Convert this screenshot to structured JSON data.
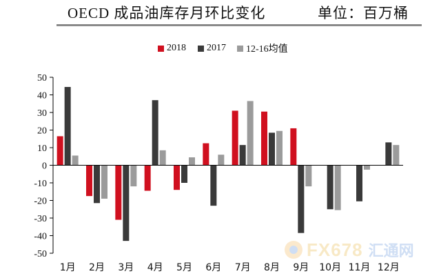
{
  "header": {
    "title": "OECD 成品油库存月环比变化",
    "unit": "单位：百万桶"
  },
  "watermark": {
    "brand": "FX678",
    "cn": "汇通网"
  },
  "colors": {
    "s2018": "#d0101f",
    "s2017": "#3a3a3a",
    "avg": "#9b9b9b",
    "rule": "#8a8a8a",
    "axis": "#000000"
  },
  "chart_data": {
    "type": "bar",
    "title": "OECD 成品油库存月环比变化",
    "unit": "单位：百万桶",
    "categories": [
      "1月",
      "2月",
      "3月",
      "4月",
      "5月",
      "6月",
      "7月",
      "8月",
      "9月",
      "10月",
      "11月",
      "12月"
    ],
    "series": [
      {
        "name": "2018",
        "color": "#d0101f",
        "values": [
          16.5,
          -17.5,
          -31,
          -14.5,
          -14,
          12.5,
          31,
          30.5,
          21,
          null,
          null,
          null
        ]
      },
      {
        "name": "2017",
        "color": "#3a3a3a",
        "values": [
          44.5,
          -21.5,
          -43,
          37,
          -10,
          -23,
          11.5,
          18.5,
          -38.5,
          -25,
          -20.5,
          13
        ]
      },
      {
        "name": "12-16均值",
        "color": "#9b9b9b",
        "values": [
          5.5,
          -19,
          -12,
          8.5,
          4.5,
          6,
          36.5,
          19.5,
          -12,
          -25.5,
          -2.5,
          11.5
        ]
      }
    ],
    "ylim": [
      -50,
      50
    ],
    "yticks": [
      50,
      40,
      30,
      20,
      10,
      0,
      -10,
      -20,
      -30,
      -40,
      -50
    ],
    "legend_position": "top-center",
    "grid": false
  }
}
